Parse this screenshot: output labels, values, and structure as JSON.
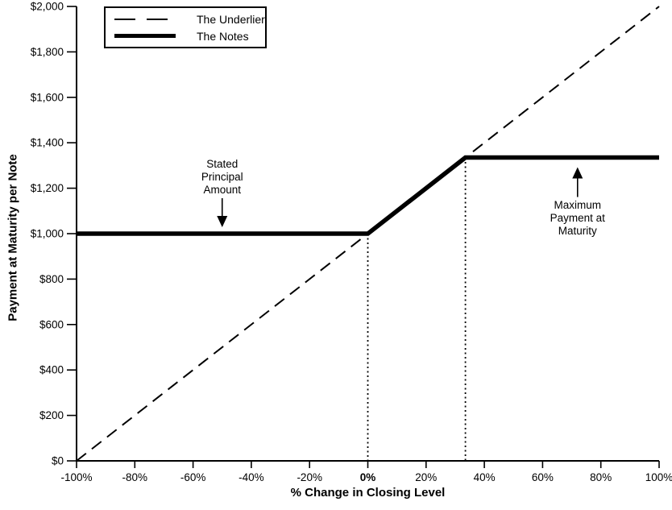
{
  "chart_data": {
    "type": "line",
    "title": "",
    "xlabel": "% Change in Closing Level",
    "ylabel": "Payment at Maturity per Note",
    "xlim": [
      -100,
      100
    ],
    "ylim": [
      0,
      2000
    ],
    "grid": false,
    "x_ticks": [
      {
        "v": -100,
        "label": "-100%"
      },
      {
        "v": -80,
        "label": "-80%"
      },
      {
        "v": -60,
        "label": "-60%"
      },
      {
        "v": -40,
        "label": "-40%"
      },
      {
        "v": -20,
        "label": "-20%"
      },
      {
        "v": 0,
        "label": "0%",
        "bold": true
      },
      {
        "v": 20,
        "label": "20%"
      },
      {
        "v": 40,
        "label": "40%"
      },
      {
        "v": 60,
        "label": "60%"
      },
      {
        "v": 80,
        "label": "80%"
      },
      {
        "v": 100,
        "label": "100%"
      }
    ],
    "y_ticks": [
      {
        "v": 0,
        "label": "$0"
      },
      {
        "v": 200,
        "label": "$200"
      },
      {
        "v": 400,
        "label": "$400"
      },
      {
        "v": 600,
        "label": "$600"
      },
      {
        "v": 800,
        "label": "$800"
      },
      {
        "v": 1000,
        "label": "$1,000"
      },
      {
        "v": 1200,
        "label": "$1,200"
      },
      {
        "v": 1400,
        "label": "$1,400"
      },
      {
        "v": 1600,
        "label": "$1,600"
      },
      {
        "v": 1800,
        "label": "$1,800"
      },
      {
        "v": 2000,
        "label": "$2,000"
      }
    ],
    "series": [
      {
        "name": "The Underlier",
        "style": "dashed",
        "points": [
          [
            -100,
            0
          ],
          [
            100,
            2000
          ]
        ]
      },
      {
        "name": "The Notes",
        "style": "thick",
        "points": [
          [
            -100,
            1000
          ],
          [
            0,
            1000
          ],
          [
            33.5,
            1335
          ],
          [
            100,
            1335
          ]
        ]
      }
    ],
    "guide_lines": [
      {
        "x": 0,
        "y_top": 1000
      },
      {
        "x": 33.5,
        "y_top": 1335
      }
    ],
    "key_values": {
      "stated_principal_amount": 1000,
      "maximum_payment_at_maturity": 1335,
      "cap_change_pct": 33.5
    },
    "annotations": [
      {
        "id": "stated-principal",
        "x": -50,
        "y": 1000,
        "arrow": "down",
        "lines": [
          "Stated",
          "Principal",
          "Amount"
        ]
      },
      {
        "id": "maximum-payment",
        "x": 72,
        "y": 1335,
        "arrow": "up",
        "lines": [
          "Maximum",
          "Payment at",
          "Maturity"
        ]
      }
    ],
    "legend": {
      "position": "top-left",
      "items": [
        {
          "label": "The Underlier",
          "style": "dashed"
        },
        {
          "label": "The Notes",
          "style": "thick"
        }
      ]
    }
  },
  "colors": {
    "foreground": "#000000",
    "background": "#ffffff"
  }
}
